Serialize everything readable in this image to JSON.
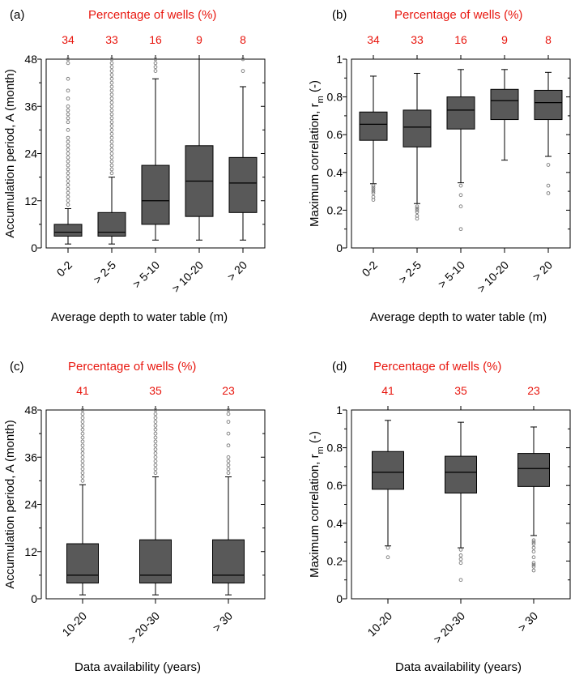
{
  "chart_data": [
    {
      "type": "box",
      "panel_label": "(a)",
      "top_title": "Percentage of wells (%)",
      "top_values": [
        "34",
        "33",
        "16",
        "9",
        "8"
      ],
      "categories": [
        "0-2",
        "> 2-5",
        "> 5-10",
        "> 10-20",
        "> 20"
      ],
      "xlabel": "Average depth to water table (m)",
      "ylabel": "Accumulation period, A (month)",
      "ylim": [
        0,
        48
      ],
      "yticks": [
        0,
        12,
        24,
        36,
        48
      ],
      "tick_labels": [
        "0",
        "12",
        "24",
        "36",
        "48"
      ],
      "boxes": [
        {
          "whislo": 1,
          "q1": 3,
          "med": 4,
          "q3": 6,
          "whishi": 10,
          "fliers": [
            11,
            12,
            13,
            14,
            15,
            16,
            17,
            18,
            19,
            20,
            21,
            22,
            23,
            24,
            25,
            26,
            27,
            28,
            30,
            32,
            33,
            34,
            35,
            36,
            38,
            40,
            43,
            47,
            48
          ]
        },
        {
          "whislo": 1,
          "q1": 3,
          "med": 4,
          "q3": 9,
          "whishi": 18,
          "fliers": [
            19,
            20,
            21,
            22,
            23,
            24,
            25,
            26,
            27,
            28,
            29,
            30,
            31,
            32,
            33,
            34,
            35,
            36,
            37,
            38,
            39,
            40,
            41,
            42,
            43,
            44,
            45,
            46,
            47,
            48
          ]
        },
        {
          "whislo": 2,
          "q1": 6,
          "med": 12,
          "q3": 21,
          "whishi": 43,
          "fliers": [
            45,
            46,
            47,
            48
          ]
        },
        {
          "whislo": 2,
          "q1": 8,
          "med": 17,
          "q3": 26,
          "whishi": 48,
          "fliers": []
        },
        {
          "whislo": 2,
          "q1": 9,
          "med": 16.5,
          "q3": 23,
          "whishi": 41,
          "fliers": [
            45,
            48
          ]
        }
      ]
    },
    {
      "type": "box",
      "panel_label": "(b)",
      "top_title": "Percentage of wells (%)",
      "top_values": [
        "34",
        "33",
        "16",
        "9",
        "8"
      ],
      "categories": [
        "0-2",
        "> 2-5",
        "> 5-10",
        "> 10-20",
        "> 20"
      ],
      "xlabel": "Average depth to water table (m)",
      "ylabel": "Maximum correlation, r",
      "ylabel_sub": "m",
      "ylabel_suffix": " (-)",
      "ylim": [
        0,
        1
      ],
      "yticks": [
        0,
        0.2,
        0.4,
        0.6,
        0.8,
        1
      ],
      "tick_labels": [
        "0",
        "0.2",
        "0.4",
        "0.6",
        "0.8",
        "1"
      ],
      "boxes": [
        {
          "whislo": 0.34,
          "q1": 0.57,
          "med": 0.655,
          "q3": 0.72,
          "whishi": 0.91,
          "fliers": [
            0.33,
            0.32,
            0.31,
            0.3,
            0.29,
            0.27,
            0.255
          ]
        },
        {
          "whislo": 0.235,
          "q1": 0.535,
          "med": 0.64,
          "q3": 0.73,
          "whishi": 0.925,
          "fliers": [
            0.22,
            0.21,
            0.2,
            0.19,
            0.17,
            0.155
          ]
        },
        {
          "whislo": 0.345,
          "q1": 0.63,
          "med": 0.73,
          "q3": 0.8,
          "whishi": 0.945,
          "fliers": [
            0.33,
            0.28,
            0.22,
            0.1
          ]
        },
        {
          "whislo": 0.465,
          "q1": 0.68,
          "med": 0.78,
          "q3": 0.84,
          "whishi": 0.945,
          "fliers": []
        },
        {
          "whislo": 0.485,
          "q1": 0.68,
          "med": 0.77,
          "q3": 0.835,
          "whishi": 0.93,
          "fliers": [
            0.44,
            0.33,
            0.29
          ]
        }
      ]
    },
    {
      "type": "box",
      "panel_label": "(c)",
      "top_title": "Percentage of wells (%)",
      "top_values": [
        "41",
        "35",
        "23"
      ],
      "categories": [
        "10-20",
        "> 20-30",
        "> 30"
      ],
      "xlabel": "Data availability (years)",
      "ylabel": "Accumulation period, A (month)",
      "ylim": [
        0,
        48
      ],
      "yticks": [
        0,
        12,
        24,
        36,
        48
      ],
      "tick_labels": [
        "0",
        "12",
        "24",
        "36",
        "48"
      ],
      "boxes": [
        {
          "whislo": 1,
          "q1": 4,
          "med": 6,
          "q3": 14,
          "whishi": 29,
          "fliers": [
            30,
            31,
            32,
            33,
            34,
            35,
            36,
            37,
            38,
            39,
            40,
            41,
            42,
            43,
            44,
            45,
            46,
            47,
            48
          ]
        },
        {
          "whislo": 1,
          "q1": 4,
          "med": 6,
          "q3": 15,
          "whishi": 31,
          "fliers": [
            32,
            33,
            34,
            35,
            36,
            37,
            38,
            39,
            40,
            41,
            42,
            43,
            44,
            45,
            46,
            47,
            48
          ]
        },
        {
          "whislo": 1,
          "q1": 4,
          "med": 6,
          "q3": 15,
          "whishi": 31,
          "fliers": [
            32,
            33,
            34,
            35,
            36,
            39,
            42,
            45,
            47,
            48
          ]
        }
      ]
    },
    {
      "type": "box",
      "panel_label": "(d)",
      "top_title": "Percentage of wells (%)",
      "top_values": [
        "41",
        "35",
        "23"
      ],
      "categories": [
        "10-20",
        "> 20-30",
        "> 30"
      ],
      "xlabel": "Data availability (years)",
      "ylabel": "Maximum correlation, r",
      "ylabel_sub": "m",
      "ylabel_suffix": " (-)",
      "ylim": [
        0,
        1
      ],
      "yticks": [
        0,
        0.2,
        0.4,
        0.6,
        0.8,
        1
      ],
      "tick_labels": [
        "0",
        "0.2",
        "0.4",
        "0.6",
        "0.8",
        "1"
      ],
      "boxes": [
        {
          "whislo": 0.28,
          "q1": 0.58,
          "med": 0.67,
          "q3": 0.78,
          "whishi": 0.945,
          "fliers": [
            0.27,
            0.22
          ]
        },
        {
          "whislo": 0.27,
          "q1": 0.56,
          "med": 0.67,
          "q3": 0.755,
          "whishi": 0.935,
          "fliers": [
            0.26,
            0.23,
            0.21,
            0.19,
            0.1
          ]
        },
        {
          "whislo": 0.335,
          "q1": 0.595,
          "med": 0.69,
          "q3": 0.77,
          "whishi": 0.91,
          "fliers": [
            0.31,
            0.3,
            0.29,
            0.27,
            0.25,
            0.22,
            0.19,
            0.18,
            0.17,
            0.15
          ]
        }
      ]
    }
  ]
}
